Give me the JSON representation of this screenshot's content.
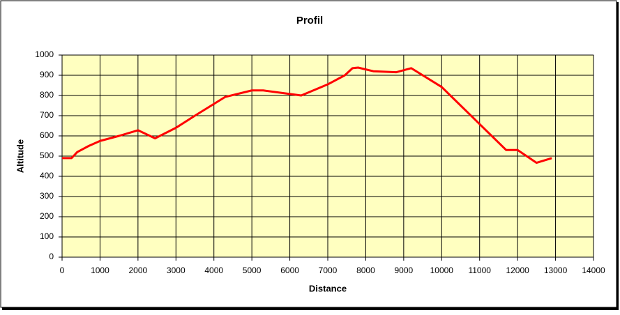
{
  "chart_data": {
    "type": "line",
    "title": "Profil",
    "xlabel": "Distance",
    "ylabel": "Altitude",
    "series": [
      {
        "name": "Altitude",
        "color": "#ff0000",
        "x": [
          0,
          250,
          400,
          700,
          1000,
          1500,
          2000,
          2450,
          3000,
          3500,
          4300,
          5000,
          5300,
          6300,
          7000,
          7450,
          7650,
          7800,
          8200,
          8800,
          9200,
          10000,
          11700,
          12000,
          12500,
          12900
        ],
        "values": [
          490,
          490,
          520,
          550,
          575,
          600,
          628,
          588,
          640,
          700,
          793,
          825,
          825,
          800,
          855,
          900,
          935,
          938,
          920,
          915,
          935,
          842,
          530,
          530,
          467,
          490
        ]
      }
    ],
    "xlim": [
      0,
      14000
    ],
    "xticks": [
      0,
      1000,
      2000,
      3000,
      4000,
      5000,
      6000,
      7000,
      8000,
      9000,
      10000,
      11000,
      12000,
      13000,
      14000
    ],
    "ylim": [
      0,
      1000
    ],
    "yticks": [
      0,
      100,
      200,
      300,
      400,
      500,
      600,
      700,
      800,
      900,
      1000
    ],
    "grid": true,
    "plot_background": "#ffffc0"
  }
}
